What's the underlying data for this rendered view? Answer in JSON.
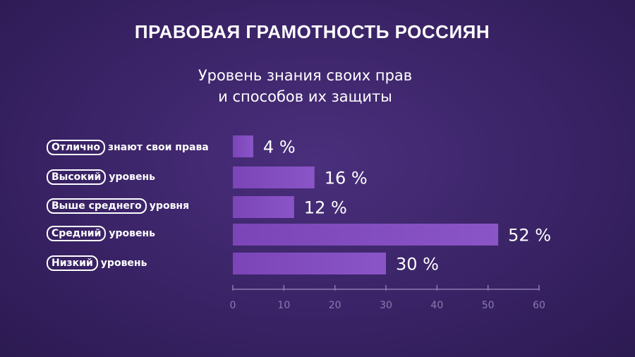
{
  "title": "ПРАВОВАЯ ГРАМОТНОСТЬ РОССИЯН",
  "subtitle_line1": "Уровень знания своих прав",
  "subtitle_line2": "и способов их защиты",
  "colors": {
    "bar": "#7b45b8",
    "bar_highlight": "#8a55c6",
    "axis": "#8c7bb0",
    "tick_label": "#8c7bb0"
  },
  "rows": [
    {
      "pill": "Отлично",
      "rest": "знают свои права"
    },
    {
      "pill": "Высокий",
      "rest": "уровень"
    },
    {
      "pill": "Выше среднего",
      "rest": "уровня"
    },
    {
      "pill": "Средний",
      "rest": "уровень"
    },
    {
      "pill": "Низкий",
      "rest": "уровень"
    }
  ],
  "chart_data": {
    "type": "bar",
    "orientation": "horizontal",
    "categories": [
      "Отлично знают свои права",
      "Высокий уровень",
      "Выше среднего уровня",
      "Средний уровень",
      "Низкий уровень"
    ],
    "values": [
      4,
      16,
      12,
      52,
      30
    ],
    "value_labels": [
      "4 %",
      "16 %",
      "12 %",
      "52 %",
      "30 %"
    ],
    "xlim": [
      0,
      60
    ],
    "x_ticks": [
      0,
      10,
      20,
      30,
      40,
      50,
      60
    ],
    "x_tick_labels": [
      "0",
      "10",
      "20",
      "30",
      "40",
      "50",
      "60"
    ],
    "grid": false,
    "legend": "none"
  }
}
